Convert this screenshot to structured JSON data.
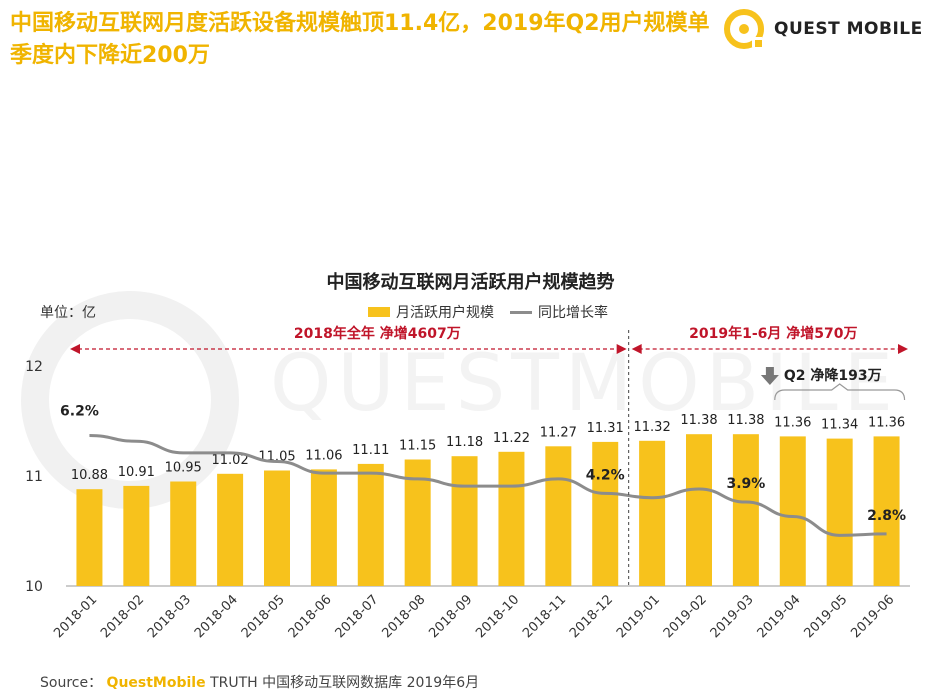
{
  "header": {
    "headline": "中国移动互联网月度活跃设备规模触顶11.4亿，2019年Q2用户规模单季度内下降近200万",
    "logo_text": "QUEST MOBILE"
  },
  "watermark_text": "QUESTMOBILE",
  "source": {
    "prefix": "Source：",
    "brand": "QuestMobile",
    "suffix": "TRUTH 中国移动互联网数据库 2019年6月"
  },
  "colors": {
    "accent": "#f0b400",
    "bar": "#f7c21c",
    "line": "#8c8c8c",
    "annotation": "#c0152a"
  },
  "chart_data": {
    "type": "bar",
    "title": "中国移动互联网月活跃用户规模趋势",
    "ylabel": "单位：亿",
    "ylim": [
      10,
      12
    ],
    "yticks": [
      "12",
      "11",
      "10"
    ],
    "categories": [
      "2018-01",
      "2018-02",
      "2018-03",
      "2018-04",
      "2018-05",
      "2018-06",
      "2018-07",
      "2018-08",
      "2018-09",
      "2018-10",
      "2018-11",
      "2018-12",
      "2019-01",
      "2019-02",
      "2019-03",
      "2019-04",
      "2019-05",
      "2019-06"
    ],
    "series": [
      {
        "name": "月活跃用户规模",
        "type": "bar",
        "values": [
          10.88,
          10.91,
          10.95,
          11.02,
          11.05,
          11.06,
          11.11,
          11.15,
          11.18,
          11.22,
          11.27,
          11.31,
          11.32,
          11.38,
          11.38,
          11.36,
          11.34,
          11.36
        ],
        "labels": [
          "10.88",
          "10.91",
          "10.95",
          "11.02",
          "11.05",
          "11.06",
          "11.11",
          "11.15",
          "11.18",
          "11.22",
          "11.27",
          "11.31",
          "11.32",
          "11.38",
          "11.38",
          "11.36",
          "11.34",
          "11.36"
        ]
      },
      {
        "name": "同比增长率",
        "type": "line",
        "values": [
          6.2,
          6.0,
          5.6,
          5.6,
          5.3,
          4.9,
          4.9,
          4.7,
          4.45,
          4.45,
          4.7,
          4.2,
          4.05,
          4.35,
          3.9,
          3.4,
          2.75,
          2.8
        ]
      }
    ],
    "line_point_labels": [
      {
        "index": 0,
        "text": "6.2%"
      },
      {
        "index": 11,
        "text": "4.2%"
      },
      {
        "index": 14,
        "text": "3.9%"
      },
      {
        "index": 17,
        "text": "2.8%"
      }
    ],
    "annotations": {
      "period_2018": "2018年全年 净增4607万",
      "period_2019": "2019年1-6月 净增570万",
      "q2": "Q2 净降193万"
    },
    "legend_position": "top"
  }
}
